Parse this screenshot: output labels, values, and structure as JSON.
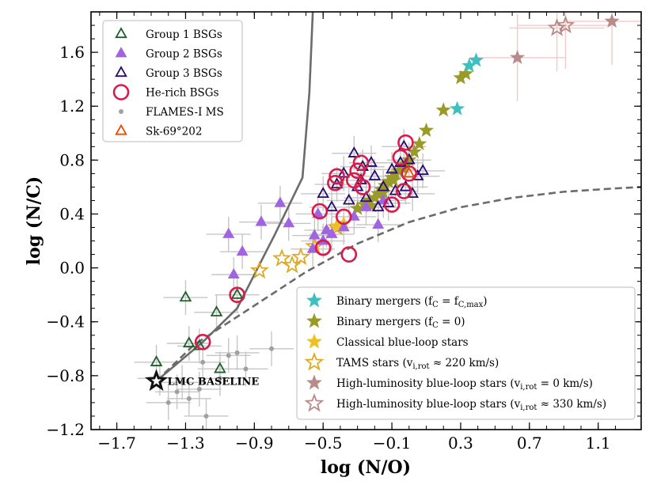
{
  "chart_data": {
    "type": "scatter",
    "xlabel": "log (N/O)",
    "ylabel": "log (N/C)",
    "xlim": [
      -1.85,
      1.35
    ],
    "ylim": [
      -1.2,
      1.9
    ],
    "xticks": [
      -1.7,
      -1.3,
      -0.9,
      -0.5,
      -0.1,
      0.3,
      0.7,
      1.1
    ],
    "xtick_labels": [
      "−1.7",
      "−1.3",
      "−0.9",
      "−0.5",
      "−0.1",
      "0.3",
      "0.7",
      "1.1"
    ],
    "yticks": [
      -1.2,
      -0.8,
      -0.4,
      0.0,
      0.4,
      0.8,
      1.2,
      1.6
    ],
    "ytick_labels": [
      "−1.2",
      "−0.8",
      "−0.4",
      "0.0",
      "0.4",
      "0.8",
      "1.2",
      "1.6"
    ],
    "annotation": {
      "text": "LMC BASELINE",
      "x": -1.47,
      "y": -0.84
    },
    "curves": [
      {
        "name": "solid-track",
        "style": "solid",
        "x": [
          -1.47,
          -1.2,
          -1.0,
          -0.78,
          -0.62,
          -0.58,
          -0.56
        ],
        "y": [
          -0.84,
          -0.55,
          -0.3,
          0.25,
          0.67,
          1.3,
          1.9
        ]
      },
      {
        "name": "dashed-track",
        "style": "dashed",
        "x": [
          -1.47,
          -1.25,
          -0.9,
          -0.6,
          -0.3,
          0.0,
          0.3,
          0.6,
          0.9,
          1.2,
          1.35
        ],
        "y": [
          -0.84,
          -0.57,
          -0.28,
          -0.03,
          0.18,
          0.34,
          0.45,
          0.52,
          0.565,
          0.59,
          0.6
        ]
      }
    ],
    "series": [
      {
        "name": "Group 1 BSGs",
        "marker": "triangle-open",
        "color": "#1f5f2a",
        "x": [
          -1.47,
          -1.3,
          -1.28,
          -1.22,
          -1.12,
          -1.1,
          -1.0
        ],
        "y": [
          -0.7,
          -0.22,
          -0.56,
          -0.58,
          -0.33,
          -0.75,
          -0.2
        ]
      },
      {
        "name": "Group 2 BSGs",
        "marker": "triangle-filled",
        "color": "#a064e0",
        "x": [
          -1.02,
          -1.05,
          -0.97,
          -0.86,
          -0.75,
          -0.7,
          -0.56,
          -0.55,
          -0.53,
          -0.5,
          -0.48,
          -0.45,
          -0.38,
          -0.32,
          -0.18,
          -0.15,
          -0.25
        ],
        "y": [
          -0.05,
          0.25,
          0.12,
          0.34,
          0.48,
          0.33,
          0.14,
          0.24,
          0.4,
          0.2,
          0.28,
          0.25,
          0.3,
          0.38,
          0.32,
          0.5,
          0.45
        ]
      },
      {
        "name": "Group 3 BSGs",
        "marker": "triangle-open",
        "color": "#2a0a6e",
        "x": [
          -0.5,
          -0.45,
          -0.42,
          -0.38,
          -0.35,
          -0.32,
          -0.3,
          -0.28,
          -0.25,
          -0.22,
          -0.2,
          -0.18,
          -0.15,
          -0.1,
          -0.08,
          -0.05,
          -0.03,
          -0.02,
          0.02,
          0.05,
          0.08,
          -0.12,
          0.0,
          -0.27
        ],
        "y": [
          0.55,
          0.45,
          0.62,
          0.7,
          0.5,
          0.85,
          0.6,
          0.65,
          0.52,
          0.78,
          0.68,
          0.45,
          0.6,
          0.73,
          0.57,
          0.78,
          0.9,
          0.6,
          0.55,
          0.68,
          0.72,
          0.48,
          0.8,
          0.75
        ]
      },
      {
        "name": "He-rich BSGs",
        "marker": "circle-open",
        "color": "#d81b4a",
        "x": [
          -1.2,
          -1.0,
          -0.52,
          -0.5,
          -0.43,
          -0.42,
          -0.38,
          -0.35,
          -0.32,
          -0.3,
          -0.28,
          -0.27,
          -0.1,
          -0.05,
          -0.02,
          -0.03,
          0.0,
          -0.5
        ],
        "y": [
          -0.55,
          -0.2,
          0.42,
          0.15,
          0.63,
          0.68,
          0.38,
          0.1,
          0.65,
          0.72,
          0.78,
          0.6,
          0.47,
          0.82,
          0.93,
          0.57,
          0.7,
          0.15
        ]
      },
      {
        "name": "FLAMES-I MS",
        "marker": "dot",
        "color": "#a0a0a0",
        "x": [
          -1.45,
          -1.4,
          -1.32,
          -1.28,
          -1.22,
          -1.18,
          -1.1,
          -1.05,
          -1.0,
          -0.95,
          -0.8,
          -1.35,
          -1.2
        ],
        "y": [
          -0.82,
          -1.0,
          -0.85,
          -0.97,
          -0.9,
          -1.1,
          -0.82,
          -0.65,
          -0.63,
          -0.75,
          -0.6,
          -0.92,
          -0.7
        ]
      },
      {
        "name": "Sk-69°202",
        "marker": "triangle-open",
        "color": "#f04a00",
        "x": [
          0.0
        ],
        "y": [
          0.7
        ]
      },
      {
        "name": "Binary mergers (f_C = f_C,max)",
        "marker": "star-filled",
        "color": "#3cc0c0",
        "x": [
          0.28,
          0.35,
          0.39
        ],
        "y": [
          1.18,
          1.5,
          1.54
        ]
      },
      {
        "name": "Binary mergers (f_C = 0)",
        "marker": "star-filled",
        "color": "#999a2a",
        "x": [
          -0.3,
          -0.26,
          -0.23,
          -0.2,
          -0.18,
          -0.16,
          -0.14,
          -0.12,
          -0.1,
          -0.08,
          -0.06,
          -0.04,
          -0.02,
          0.0,
          0.03,
          0.06,
          0.1,
          0.2,
          0.3,
          0.33,
          -0.22,
          -0.15,
          -0.09,
          -0.03
        ],
        "y": [
          0.44,
          0.47,
          0.5,
          0.52,
          0.55,
          0.58,
          0.61,
          0.64,
          0.67,
          0.7,
          0.72,
          0.74,
          0.77,
          0.8,
          0.86,
          0.92,
          1.02,
          1.17,
          1.41,
          1.44,
          0.46,
          0.56,
          0.65,
          0.75
        ]
      },
      {
        "name": "Classical blue-loop stars",
        "marker": "star-filled",
        "color": "#f0c020",
        "x": [
          -0.42,
          -0.38
        ],
        "y": [
          0.31,
          0.33
        ]
      },
      {
        "name": "TAMS stars (v_i,rot ≈ 220 km/s)",
        "marker": "star-open",
        "color": "#e0a820",
        "x": [
          -0.87,
          -0.74,
          -0.68,
          -0.63,
          -0.55,
          -0.42
        ],
        "y": [
          -0.02,
          0.07,
          0.02,
          0.08,
          0.16,
          0.3
        ]
      },
      {
        "name": "High-luminosity blue-loop stars (v_i,rot = 0 km/s)",
        "marker": "star-filled",
        "color": "#b88a88",
        "x": [
          0.63,
          1.18
        ],
        "y": [
          1.56,
          1.83
        ]
      },
      {
        "name": "High-luminosity blue-loop stars (v_i,rot ≈ 330 km/s)",
        "marker": "star-open",
        "color": "#b88a88",
        "x": [
          0.86,
          0.91
        ],
        "y": [
          1.78,
          1.8
        ]
      }
    ],
    "legend_upper": {
      "placement": "top-left",
      "items": [
        {
          "label": "Group 1 BSGs",
          "marker": "triangle-open",
          "color": "#1f5f2a"
        },
        {
          "label": "Group 2 BSGs",
          "marker": "triangle-filled",
          "color": "#a064e0"
        },
        {
          "label": "Group 3 BSGs",
          "marker": "triangle-open",
          "color": "#2a0a6e"
        },
        {
          "label": "He-rich BSGs",
          "marker": "circle-open",
          "color": "#d81b4a"
        },
        {
          "label": "FLAMES-I MS",
          "marker": "dot",
          "color": "#a0a0a0"
        },
        {
          "label": "Sk-69°202",
          "marker": "triangle-open",
          "color": "#f04a00"
        }
      ]
    },
    "legend_lower": {
      "placement": "bottom-right",
      "items": [
        {
          "label": "Binary mergers (f",
          "sub": "C",
          "mid": " = f",
          "sub2": "C,max",
          "tail": ")",
          "marker": "star-filled",
          "color": "#3cc0c0"
        },
        {
          "label": "Binary mergers (f",
          "sub": "C",
          "mid": " = 0)",
          "sub2": "",
          "tail": "",
          "marker": "star-filled",
          "color": "#999a2a"
        },
        {
          "label": "Classical blue-loop stars",
          "sub": "",
          "mid": "",
          "sub2": "",
          "tail": "",
          "marker": "star-filled",
          "color": "#f0c020"
        },
        {
          "label": "TAMS stars (v",
          "sub": "i,rot",
          "mid": " ≈ 220 km/s)",
          "sub2": "",
          "tail": "",
          "marker": "star-open",
          "color": "#e0a820"
        },
        {
          "label": "High-luminosity blue-loop stars (v",
          "sub": "i,rot",
          "mid": " = 0 km/s)",
          "sub2": "",
          "tail": "",
          "marker": "star-filled",
          "color": "#b88a88"
        },
        {
          "label": "High-luminosity blue-loop stars (v",
          "sub": "i,rot",
          "mid": " ≈ 330 km/s)",
          "sub2": "",
          "tail": "",
          "marker": "star-open",
          "color": "#b88a88"
        }
      ]
    }
  }
}
